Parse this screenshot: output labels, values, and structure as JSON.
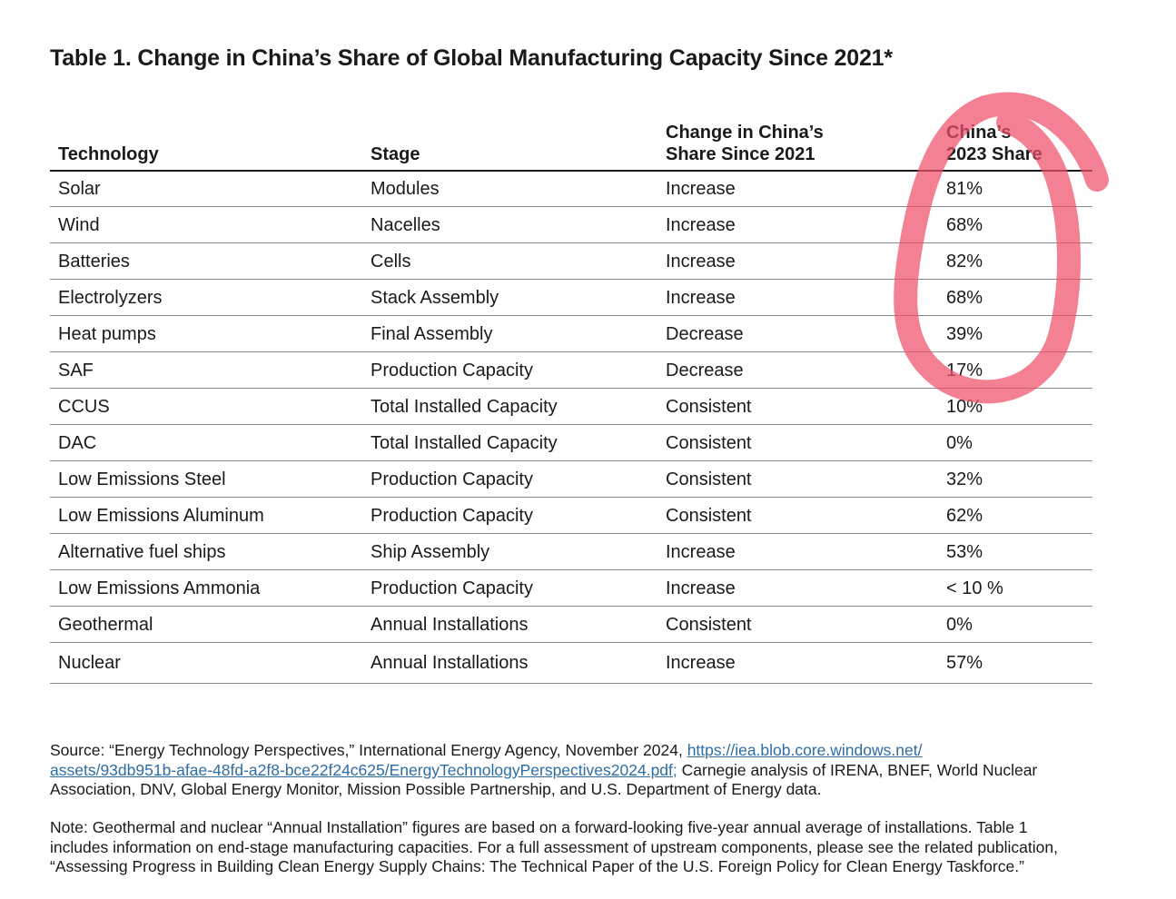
{
  "title": "Table 1. Change in China’s Share of Global Manufacturing Capacity Since 2021*",
  "table": {
    "headers": {
      "technology": "Technology",
      "stage": "Stage",
      "change_line1": "Change in China’s",
      "change_line2": "Share Since 2021",
      "share_line1": "China’s",
      "share_line2": "2023 Share"
    },
    "rows": [
      {
        "technology": "Solar",
        "stage": "Modules",
        "change": "Increase",
        "share": "81%"
      },
      {
        "technology": "Wind",
        "stage": "Nacelles",
        "change": "Increase",
        "share": "68%"
      },
      {
        "technology": "Batteries",
        "stage": "Cells",
        "change": "Increase",
        "share": "82%"
      },
      {
        "technology": "Electrolyzers",
        "stage": "Stack Assembly",
        "change": "Increase",
        "share": "68%"
      },
      {
        "technology": "Heat pumps",
        "stage": "Final Assembly",
        "change": "Decrease",
        "share": "39%"
      },
      {
        "technology": "SAF",
        "stage": "Production Capacity",
        "change": "Decrease",
        "share": "17%"
      },
      {
        "technology": "CCUS",
        "stage": "Total Installed Capacity",
        "change": "Consistent",
        "share": "10%"
      },
      {
        "technology": "DAC",
        "stage": "Total Installed Capacity",
        "change": "Consistent",
        "share": "0%"
      },
      {
        "technology": "Low Emissions Steel",
        "stage": "Production Capacity",
        "change": "Consistent",
        "share": "32%"
      },
      {
        "technology": "Low Emissions Aluminum",
        "stage": "Production Capacity",
        "change": "Consistent",
        "share": "62%"
      },
      {
        "technology": "Alternative fuel ships",
        "stage": "Ship Assembly",
        "change": "Increase",
        "share": "53%"
      },
      {
        "technology": "Low Emissions Ammonia",
        "stage": "Production Capacity",
        "change": "Increase",
        "share": "< 10 %"
      },
      {
        "technology": "Geothermal",
        "stage": "Annual Installations",
        "change": "Consistent",
        "share": "0%"
      },
      {
        "technology": "Nuclear",
        "stage": "Annual Installations",
        "change": "Increase",
        "share": "57%"
      }
    ]
  },
  "source": {
    "prefix": "Source: “Energy Technology Perspectives,” International Energy Agency, November 2024, ",
    "link_line1": "https://iea.blob.core.windows.net/",
    "link_line2": "assets/93db951b-afae-48fd-a2f8-bce22f24c625/EnergyTechnologyPerspectives2024.pdf;",
    "suffix": " Carnegie analysis of IRENA, BNEF, World Nuclear Association, DNV, Global Energy Monitor, Mission Possible Partnership, and U.S. Department of Energy data."
  },
  "note": "Note: Geothermal and nuclear “Annual Installation” figures are based on a forward-looking five-year annual average of installations. Table 1 includes information on end-stage manufacturing capacities. For a full assessment of upstream components, please see the related publication, “Assessing Progress in Building Clean Energy Supply Chains: The Technical Paper of the U.S. Foreign Policy for Clean Energy Taskforce.”",
  "colors": {
    "annotation_stroke": "#f0506a",
    "link": "#2e6da4"
  }
}
